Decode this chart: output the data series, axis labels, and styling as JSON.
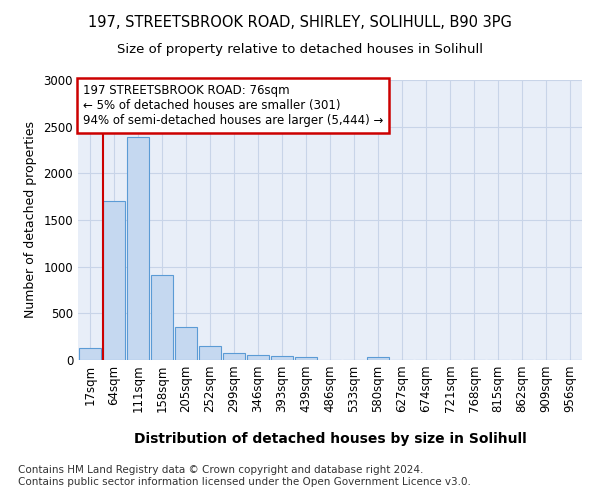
{
  "title1": "197, STREETSBROOK ROAD, SHIRLEY, SOLIHULL, B90 3PG",
  "title2": "Size of property relative to detached houses in Solihull",
  "xlabel": "Distribution of detached houses by size in Solihull",
  "ylabel": "Number of detached properties",
  "bin_labels": [
    "17sqm",
    "64sqm",
    "111sqm",
    "158sqm",
    "205sqm",
    "252sqm",
    "299sqm",
    "346sqm",
    "393sqm",
    "439sqm",
    "486sqm",
    "533sqm",
    "580sqm",
    "627sqm",
    "674sqm",
    "721sqm",
    "768sqm",
    "815sqm",
    "862sqm",
    "909sqm",
    "956sqm"
  ],
  "bar_values": [
    130,
    1700,
    2390,
    910,
    355,
    145,
    80,
    55,
    45,
    35,
    0,
    0,
    30,
    0,
    0,
    0,
    0,
    0,
    0,
    0,
    0
  ],
  "bar_color": "#c5d8f0",
  "bar_edge_color": "#5b9bd5",
  "vline_color": "#cc0000",
  "annotation_text": "197 STREETSBROOK ROAD: 76sqm\n← 5% of detached houses are smaller (301)\n94% of semi-detached houses are larger (5,444) →",
  "annotation_box_color": "#ffffff",
  "annotation_box_edge": "#cc0000",
  "ylim": [
    0,
    3000
  ],
  "yticks": [
    0,
    500,
    1000,
    1500,
    2000,
    2500,
    3000
  ],
  "grid_color": "#c8d4e8",
  "bg_color": "#e8eef8",
  "footer": "Contains HM Land Registry data © Crown copyright and database right 2024.\nContains public sector information licensed under the Open Government Licence v3.0.",
  "title_fontsize": 10.5,
  "subtitle_fontsize": 9.5,
  "xlabel_fontsize": 10,
  "ylabel_fontsize": 9,
  "tick_fontsize": 8.5,
  "footer_fontsize": 7.5
}
